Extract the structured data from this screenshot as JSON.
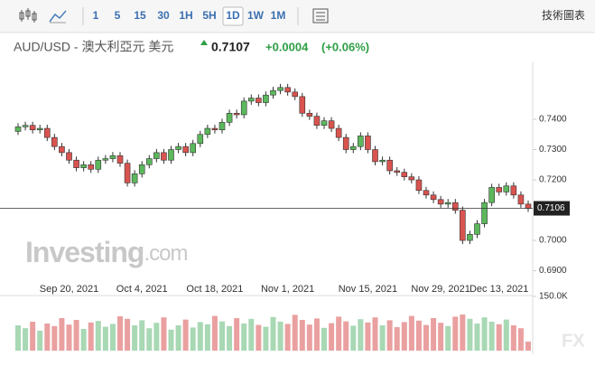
{
  "ui": {
    "toolbar": [
      "1",
      "5",
      "15",
      "30",
      "1H",
      "5H",
      "1D",
      "1W",
      "1M"
    ],
    "selected": "1D",
    "menu": "技術圖表",
    "symbol": "AUD/USD - 澳大利亞元 美元",
    "price": "0.7107",
    "change": "+0.0004",
    "change_pct": "(+0.06%)",
    "watermark": [
      "Investing",
      ".com"
    ],
    "logo": "FX"
  },
  "chart_data": {
    "type": "candlestick",
    "categories": [
      null,
      null,
      null,
      null,
      null,
      null,
      null,
      "Sep 20, 2021",
      null,
      null,
      null,
      null,
      null,
      null,
      null,
      null,
      null,
      "Oct 4, 2021",
      null,
      null,
      null,
      null,
      null,
      null,
      null,
      null,
      null,
      "Oct 18, 2021",
      null,
      null,
      null,
      null,
      null,
      null,
      null,
      null,
      null,
      "Nov 1, 2021",
      null,
      null,
      null,
      null,
      null,
      null,
      null,
      null,
      null,
      null,
      "Nov 15, 2021",
      null,
      null,
      null,
      null,
      null,
      null,
      null,
      null,
      null,
      "Nov 29, 2021",
      null,
      null,
      null,
      null,
      null,
      null,
      null,
      "Dec 13, 2021",
      null,
      null,
      null,
      null
    ],
    "open": [
      0.736,
      0.7375,
      0.738,
      0.7365,
      0.737,
      0.734,
      0.731,
      0.729,
      0.7265,
      0.724,
      0.725,
      0.7235,
      0.7265,
      0.727,
      0.728,
      0.7255,
      0.719,
      0.722,
      0.725,
      0.727,
      0.729,
      0.7265,
      0.73,
      0.731,
      0.729,
      0.732,
      0.735,
      0.737,
      0.7365,
      0.739,
      0.742,
      0.7415,
      0.746,
      0.747,
      0.7455,
      0.748,
      0.7495,
      0.7505,
      0.749,
      0.7475,
      0.742,
      0.741,
      0.738,
      0.7395,
      0.737,
      0.734,
      0.73,
      0.731,
      0.7345,
      0.73,
      0.726,
      0.7265,
      0.723,
      0.7225,
      0.721,
      0.72,
      0.7165,
      0.715,
      0.7135,
      0.712,
      0.7125,
      0.71,
      0.7,
      0.702,
      0.7055,
      0.7125,
      0.7175,
      0.716,
      0.718,
      0.715,
      0.712
    ],
    "high": [
      0.7387,
      0.7392,
      0.7392,
      0.7382,
      0.7382,
      0.7352,
      0.7322,
      0.7302,
      0.7277,
      0.7262,
      0.7262,
      0.7277,
      0.7282,
      0.7292,
      0.7292,
      0.7267,
      0.7232,
      0.7262,
      0.7282,
      0.7302,
      0.7302,
      0.7312,
      0.7322,
      0.7322,
      0.7332,
      0.7362,
      0.7382,
      0.7382,
      0.7402,
      0.7432,
      0.7432,
      0.7472,
      0.7482,
      0.7482,
      0.7492,
      0.7507,
      0.7517,
      0.7517,
      0.7502,
      0.7487,
      0.7432,
      0.7422,
      0.7407,
      0.7407,
      0.7382,
      0.7352,
      0.7322,
      0.7357,
      0.7357,
      0.7312,
      0.7277,
      0.7277,
      0.7242,
      0.7237,
      0.7222,
      0.7212,
      0.7177,
      0.7162,
      0.7147,
      0.7137,
      0.7137,
      0.7112,
      0.7032,
      0.7067,
      0.7137,
      0.7187,
      0.7187,
      0.7192,
      0.7192,
      0.7162,
      0.7132
    ],
    "low": [
      0.7348,
      0.7363,
      0.7353,
      0.7353,
      0.7328,
      0.7298,
      0.7278,
      0.7253,
      0.7228,
      0.7228,
      0.7223,
      0.7223,
      0.7253,
      0.7258,
      0.7243,
      0.7178,
      0.7178,
      0.7208,
      0.7238,
      0.7258,
      0.7253,
      0.7253,
      0.7288,
      0.7278,
      0.7278,
      0.7308,
      0.7338,
      0.7353,
      0.7353,
      0.7378,
      0.7403,
      0.7403,
      0.7448,
      0.7443,
      0.7443,
      0.7468,
      0.7483,
      0.7478,
      0.7463,
      0.7408,
      0.7398,
      0.7368,
      0.7368,
      0.7358,
      0.7328,
      0.7288,
      0.7288,
      0.7298,
      0.7288,
      0.7248,
      0.7248,
      0.7218,
      0.7213,
      0.7198,
      0.7188,
      0.7153,
      0.7138,
      0.7123,
      0.7108,
      0.7108,
      0.7088,
      0.6988,
      0.6988,
      0.7008,
      0.7043,
      0.7113,
      0.7148,
      0.7148,
      0.7138,
      0.7108,
      0.7094
    ],
    "close": [
      0.7375,
      0.738,
      0.7365,
      0.737,
      0.734,
      0.731,
      0.729,
      0.7265,
      0.724,
      0.725,
      0.7235,
      0.7265,
      0.727,
      0.728,
      0.7255,
      0.719,
      0.722,
      0.725,
      0.727,
      0.729,
      0.7265,
      0.73,
      0.731,
      0.729,
      0.732,
      0.735,
      0.737,
      0.7365,
      0.739,
      0.742,
      0.7415,
      0.746,
      0.747,
      0.7455,
      0.748,
      0.7495,
      0.7505,
      0.749,
      0.7475,
      0.742,
      0.741,
      0.738,
      0.7395,
      0.737,
      0.734,
      0.73,
      0.731,
      0.7345,
      0.73,
      0.726,
      0.7265,
      0.723,
      0.7225,
      0.721,
      0.72,
      0.7165,
      0.715,
      0.7135,
      0.712,
      0.7125,
      0.71,
      0.7,
      0.702,
      0.7055,
      0.7125,
      0.7175,
      0.716,
      0.718,
      0.715,
      0.712,
      0.7106
    ],
    "volume": [
      70,
      62,
      80,
      55,
      75,
      68,
      90,
      72,
      85,
      60,
      78,
      82,
      66,
      74,
      95,
      88,
      70,
      84,
      62,
      77,
      92,
      58,
      70,
      86,
      64,
      79,
      73,
      96,
      81,
      68,
      90,
      75,
      88,
      71,
      66,
      93,
      80,
      74,
      99,
      85,
      72,
      89,
      63,
      76,
      94,
      81,
      69,
      87,
      78,
      92,
      70,
      84,
      65,
      79,
      96,
      83,
      71,
      90,
      77,
      68,
      94,
      100,
      88,
      75,
      92,
      80,
      73,
      86,
      70,
      62,
      25
    ],
    "up_color": "#5cb85c",
    "down_color": "#d9534f",
    "up_volume_color": "#a8d8b4",
    "down_volume_color": "#eaa0a0",
    "ylim": [
      0.6845,
      0.7585
    ],
    "yticks": [
      {
        "value": 0.69,
        "label": "0.6900"
      },
      {
        "value": 0.7,
        "label": "0.7000"
      },
      {
        "value": 0.72,
        "label": "0.7200"
      },
      {
        "value": 0.73,
        "label": "0.7300"
      },
      {
        "value": 0.74,
        "label": "0.7400"
      }
    ],
    "last_price": {
      "value": 0.7106,
      "label": "0.7106"
    },
    "vlim": [
      0,
      150
    ],
    "vticks": [
      {
        "value": 150,
        "label": "150.0K"
      }
    ]
  }
}
